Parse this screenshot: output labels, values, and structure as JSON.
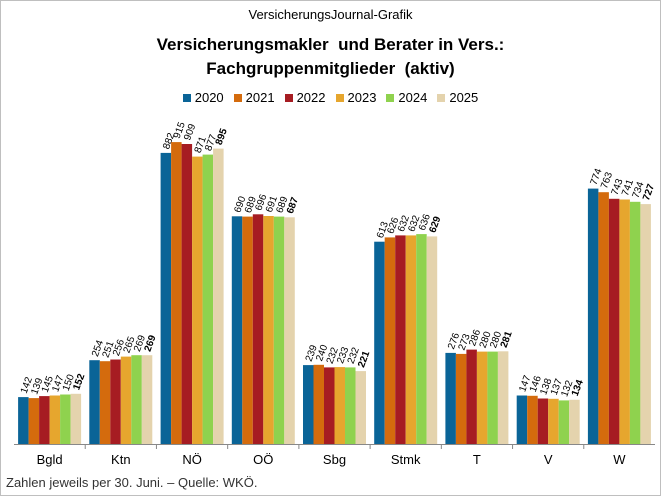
{
  "header": "VersicherungsJournal-Grafik",
  "title": "Versicherungsmakler  und Berater in Vers.:\nFachgruppenmitglieder  (aktiv)",
  "footer": "Zahlen  jeweils  per 30. Juni.  – Quelle:  WKÖ.",
  "colors": {
    "2020": "#0a6497",
    "2021": "#d46b0d",
    "2022": "#a61c22",
    "2023": "#e6a62e",
    "2024": "#8fd24e",
    "2025": "#e4d3ad"
  },
  "chart_data": {
    "type": "bar",
    "title": "Versicherungsmakler  und Berater in Vers.: Fachgruppenmitglieder  (aktiv)",
    "categories": [
      "Bgld",
      "Ktn",
      "NÖ",
      "OÖ",
      "Sbg",
      "Stmk",
      "T",
      "V",
      "W"
    ],
    "series": [
      {
        "name": "2020",
        "values": [
          142,
          254,
          882,
          690,
          239,
          613,
          276,
          147,
          774
        ]
      },
      {
        "name": "2021",
        "values": [
          139,
          251,
          915,
          689,
          240,
          626,
          273,
          146,
          763
        ]
      },
      {
        "name": "2022",
        "values": [
          145,
          256,
          909,
          696,
          232,
          632,
          286,
          138,
          743
        ]
      },
      {
        "name": "2023",
        "values": [
          147,
          265,
          871,
          691,
          233,
          632,
          280,
          137,
          741
        ]
      },
      {
        "name": "2024",
        "values": [
          150,
          269,
          877,
          689,
          232,
          636,
          280,
          132,
          734
        ]
      },
      {
        "name": "2025",
        "values": [
          152,
          269,
          895,
          687,
          221,
          629,
          281,
          134,
          727
        ]
      }
    ],
    "ylim": [
      0,
      1000
    ],
    "grid": false,
    "legend_position": "top",
    "data_labels": true,
    "last_series_labels_bold": true
  }
}
